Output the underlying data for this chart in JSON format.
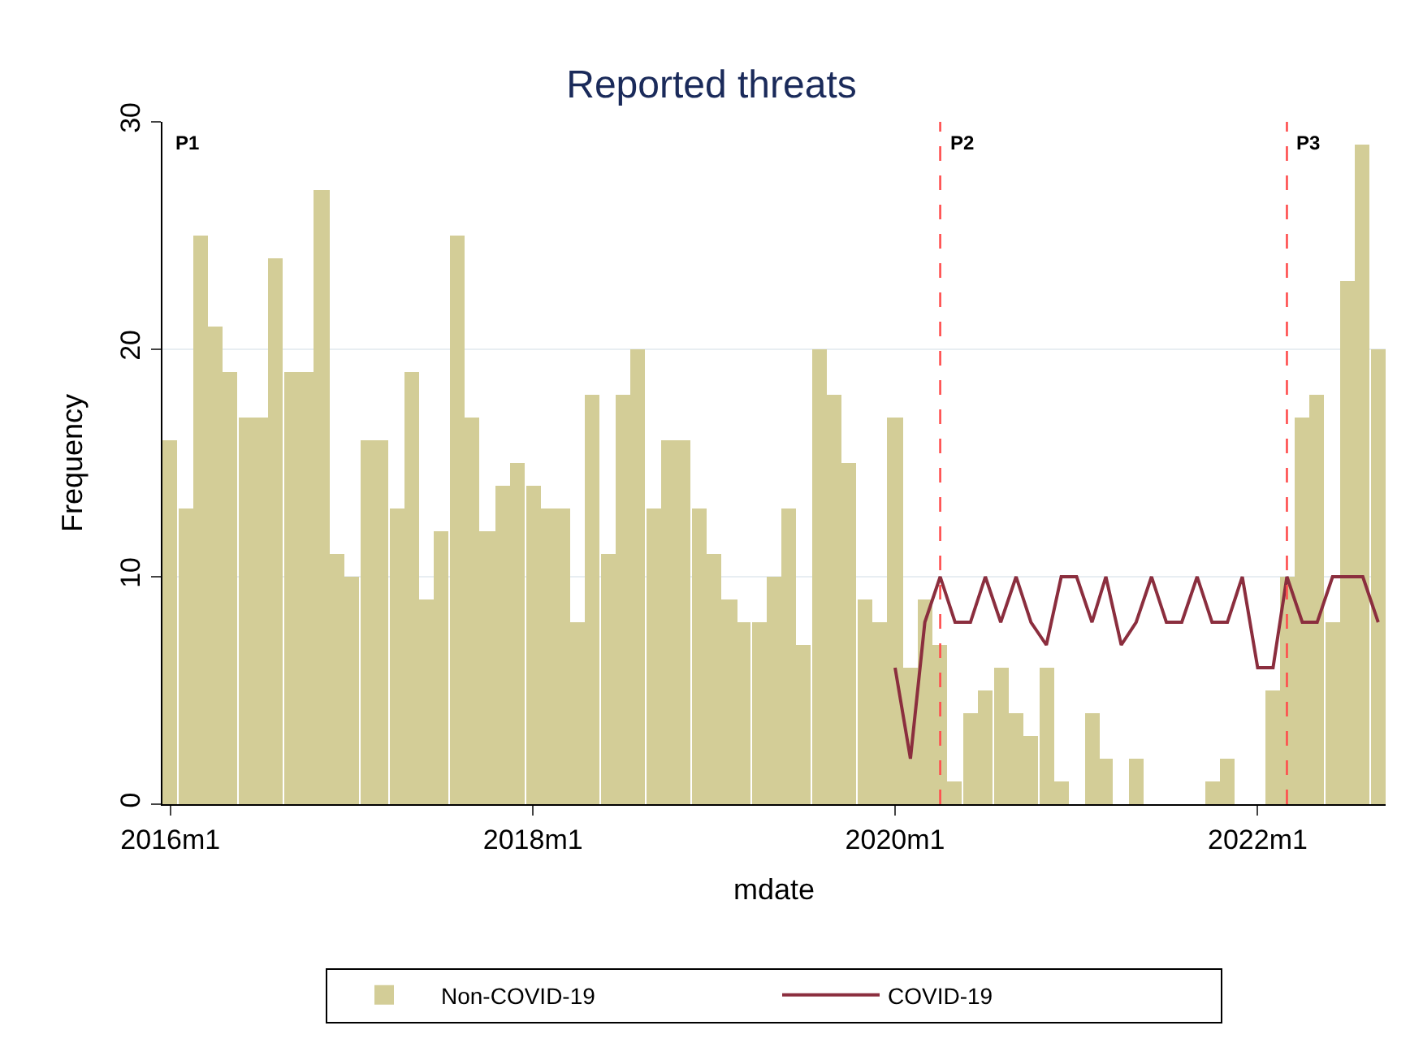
{
  "chart_data": {
    "type": "bar",
    "title": "Reported threats",
    "xlabel": "mdate",
    "ylabel": "Frequency",
    "x": [
      "2016-01",
      "2016-02",
      "2016-03",
      "2016-04",
      "2016-05",
      "2016-06",
      "2016-07",
      "2016-08",
      "2016-09",
      "2016-10",
      "2016-11",
      "2016-12",
      "2017-01",
      "2017-02",
      "2017-03",
      "2017-04",
      "2017-05",
      "2017-06",
      "2017-07",
      "2017-08",
      "2017-09",
      "2017-10",
      "2017-11",
      "2017-12",
      "2018-01",
      "2018-02",
      "2018-03",
      "2018-04",
      "2018-05",
      "2018-06",
      "2018-07",
      "2018-08",
      "2018-09",
      "2018-10",
      "2018-11",
      "2018-12",
      "2019-01",
      "2019-02",
      "2019-03",
      "2019-04",
      "2019-05",
      "2019-06",
      "2019-07",
      "2019-08",
      "2019-09",
      "2019-10",
      "2019-11",
      "2019-12",
      "2020-01",
      "2020-02",
      "2020-03",
      "2020-04",
      "2020-05",
      "2020-06",
      "2020-07",
      "2020-08",
      "2020-09",
      "2020-10",
      "2020-11",
      "2020-12",
      "2021-01",
      "2021-02",
      "2021-03",
      "2021-04",
      "2021-05",
      "2021-06",
      "2021-07",
      "2021-08",
      "2021-09",
      "2021-10",
      "2021-11",
      "2021-12",
      "2022-01",
      "2022-02",
      "2022-03",
      "2022-04",
      "2022-05",
      "2022-06",
      "2022-07",
      "2022-08",
      "2022-09"
    ],
    "series": [
      {
        "name": "Non-COVID-19",
        "color": "#d3cd97",
        "values": [
          16,
          13,
          25,
          21,
          19,
          17,
          17,
          24,
          19,
          19,
          27,
          11,
          10,
          16,
          16,
          13,
          19,
          9,
          12,
          25,
          17,
          12,
          14,
          15,
          14,
          13,
          13,
          8,
          18,
          11,
          18,
          20,
          13,
          16,
          16,
          13,
          11,
          9,
          8,
          8,
          10,
          13,
          7,
          20,
          18,
          15,
          9,
          8,
          17,
          6,
          9,
          7,
          1,
          4,
          5,
          6,
          4,
          3,
          6,
          1,
          0,
          4,
          2,
          0,
          2,
          0,
          0,
          0,
          0,
          1,
          2,
          0,
          0,
          5,
          10,
          17,
          18,
          8,
          23,
          29,
          20
        ]
      },
      {
        "name": "COVID-19",
        "type": "line",
        "color": "#8b2e3e",
        "values": [
          null,
          null,
          null,
          null,
          null,
          null,
          null,
          null,
          null,
          null,
          null,
          null,
          null,
          null,
          null,
          null,
          null,
          null,
          null,
          null,
          null,
          null,
          null,
          null,
          null,
          null,
          null,
          null,
          null,
          null,
          null,
          null,
          null,
          null,
          null,
          null,
          null,
          null,
          null,
          null,
          null,
          null,
          null,
          null,
          null,
          null,
          null,
          null,
          6,
          2,
          8,
          10,
          8,
          8,
          10,
          8,
          10,
          8,
          7,
          10,
          10,
          8,
          10,
          7,
          8,
          10,
          8,
          8,
          10,
          8,
          8,
          10,
          6,
          6,
          10,
          8,
          8,
          10,
          10,
          10,
          8
        ]
      }
    ],
    "xlim": [
      "2015-12-16",
      "2022-09-16"
    ],
    "xticks": [
      {
        "value": "2016-01",
        "label": "2016m1"
      },
      {
        "value": "2018-01",
        "label": "2018m1"
      },
      {
        "value": "2020-01",
        "label": "2020m1"
      },
      {
        "value": "2022-01",
        "label": "2022m1"
      }
    ],
    "ylim": [
      0,
      30
    ],
    "yticks": [
      0,
      10,
      20,
      30
    ],
    "grid": "y",
    "legend": "bottom",
    "ref_lines": [
      {
        "axis": "x",
        "value": "2020-04",
        "label": "P2",
        "color": "#ff4d4d",
        "line_style": "dashed"
      },
      {
        "axis": "x",
        "value": "2022-03",
        "label": "P3",
        "color": "#ff4d4d",
        "line_style": "dashed"
      }
    ],
    "annotations": [
      "P1"
    ]
  }
}
